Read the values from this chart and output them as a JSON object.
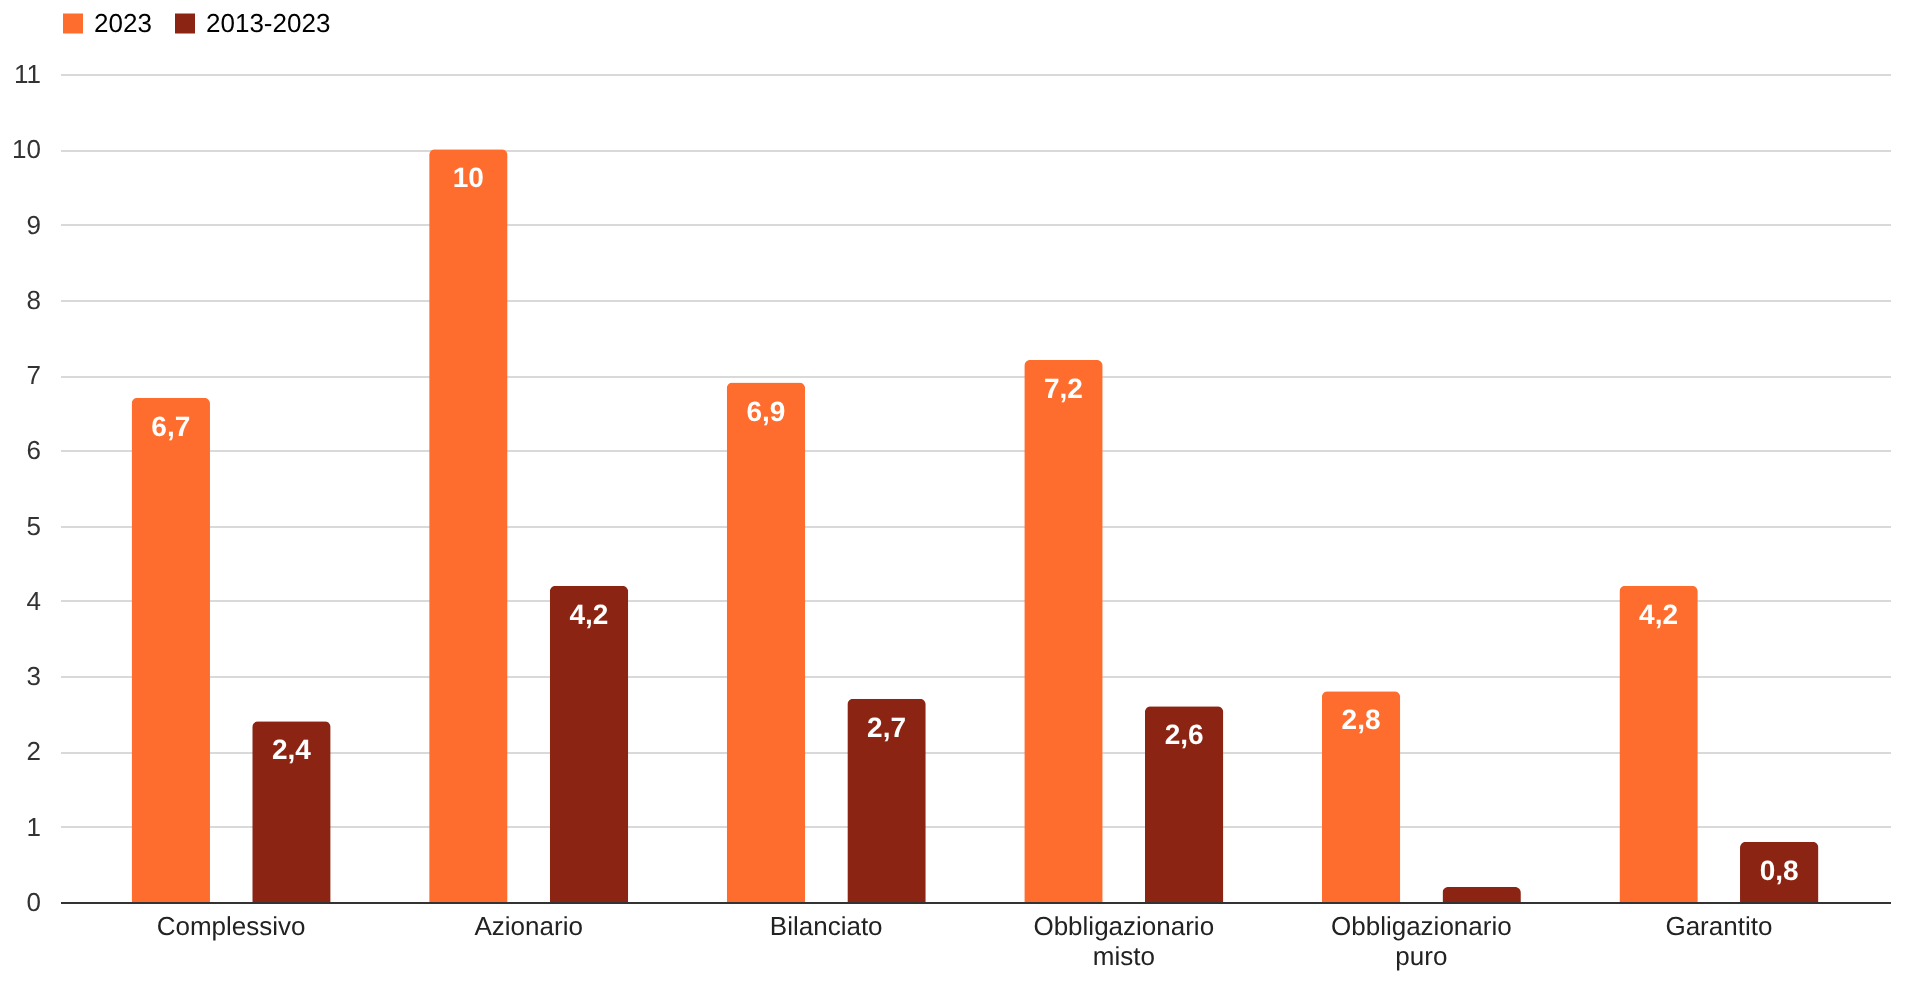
{
  "chart_data": {
    "type": "bar",
    "categories": [
      "Complessivo",
      "Azionario",
      "Bilanciato",
      "Obbligazionario misto",
      "Obbligazionario puro",
      "Garantito"
    ],
    "series": [
      {
        "name": "2023",
        "color": "#ff6d2e",
        "values": [
          6.7,
          10,
          6.9,
          7.2,
          2.8,
          4.2
        ],
        "value_labels": [
          "6,7",
          "10",
          "6,9",
          "7,2",
          "2,8",
          "4,2"
        ]
      },
      {
        "name": "2013-2023",
        "color": "#8b2412",
        "values": [
          2.4,
          4.2,
          2.7,
          2.6,
          0.2,
          0.8
        ],
        "value_labels": [
          "2,4",
          "4,2",
          "2,7",
          "2,6",
          null,
          "0,8"
        ]
      }
    ],
    "ylim": [
      0,
      11
    ],
    "yticks": [
      0,
      1,
      2,
      3,
      4,
      5,
      6,
      7,
      8,
      9,
      10,
      11
    ],
    "grid": "y",
    "legend": "top"
  }
}
